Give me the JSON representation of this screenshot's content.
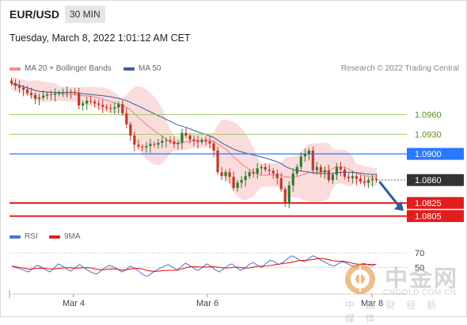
{
  "header": {
    "symbol": "EUR/USD",
    "timeframe": "30 MIN"
  },
  "datetime": "Tuesday, March 8, 2022 1:01:12 AM CET",
  "legend": {
    "ma20": "MA 20 + Bollinger Bands",
    "ma50": "MA 50",
    "rsi": "RSI",
    "ma9": "9MA"
  },
  "credit": "Research © 2022 Trading Central",
  "colors": {
    "ma20": "#ee9090",
    "ma50": "#3a5f9e",
    "band": "#f9d6d6",
    "up": "#2f7a2f",
    "down": "#c0392b",
    "resistance": "#9ccc65",
    "pivot": "#2979ff",
    "support": "#e11d1d",
    "last": "#333333",
    "arrow": "#2f5b9c"
  },
  "chart_data": [
    {
      "type": "candlestick",
      "title": "EUR/USD 30 MIN",
      "x_tick_labels": [
        "Mar 4",
        "Mar 6",
        "Mar 8"
      ],
      "ylim": [
        1.079,
        1.102
      ],
      "levels": [
        {
          "label": "1.0960",
          "value": 1.096,
          "kind": "resistance"
        },
        {
          "label": "1.0930",
          "value": 1.093,
          "kind": "resistance"
        },
        {
          "label": "1.0900",
          "value": 1.09,
          "kind": "pivot"
        },
        {
          "label": "1.0860",
          "value": 1.086,
          "kind": "last"
        },
        {
          "label": "1.0825",
          "value": 1.0825,
          "kind": "support"
        },
        {
          "label": "1.0805",
          "value": 1.0805,
          "kind": "support"
        }
      ],
      "close": [
        1.1008,
        1.1004,
        1.1001,
        1.0998,
        1.0993,
        1.099,
        1.0984,
        1.0986,
        1.0989,
        1.0991,
        1.099,
        1.0992,
        1.0993,
        1.0994,
        1.0995,
        1.0994,
        1.0993,
        1.0974,
        1.0977,
        1.0981,
        1.098,
        1.0977,
        1.0975,
        1.0972,
        1.097,
        1.0969,
        1.0971,
        1.0976,
        1.0962,
        1.0945,
        1.0928,
        1.0914,
        1.0911,
        1.091,
        1.0912,
        1.0915,
        1.0914,
        1.0917,
        1.092,
        1.0921,
        1.0919,
        1.0915,
        1.0917,
        1.0932,
        1.0928,
        1.0922,
        1.092,
        1.0918,
        1.0921,
        1.0919,
        1.0916,
        1.0905,
        1.0872,
        1.0866,
        1.0872,
        1.0865,
        1.0848,
        1.0856,
        1.086,
        1.0866,
        1.0872,
        1.087,
        1.0878,
        1.088,
        1.0876,
        1.0874,
        1.087,
        1.0863,
        1.0846,
        1.0825,
        1.0852,
        1.087,
        1.088,
        1.0896,
        1.09,
        1.0905,
        1.0875,
        1.088,
        1.0872,
        1.0875,
        1.086,
        1.0868,
        1.088,
        1.0876,
        1.0865,
        1.0863,
        1.0866,
        1.0862,
        1.0858,
        1.0856,
        1.086,
        1.0862,
        1.086
      ],
      "rsi": {
        "reference_levels": [
          70,
          50
        ],
        "values": [
          52,
          50,
          48,
          46,
          44,
          49,
          53,
          51,
          47,
          44,
          49,
          55,
          52,
          48,
          45,
          50,
          54,
          50,
          46,
          43,
          41,
          45,
          50,
          53,
          51,
          48,
          44,
          47,
          52,
          49,
          45,
          40,
          38,
          42,
          46,
          49,
          52,
          54,
          50,
          47,
          51,
          56,
          53,
          49,
          46,
          50,
          55,
          52,
          47,
          44,
          48,
          53,
          55,
          50,
          46,
          49,
          54,
          57,
          53,
          50,
          56,
          60,
          58,
          54,
          57,
          62,
          66,
          64,
          60,
          58,
          62,
          66,
          64,
          60,
          57,
          54,
          52,
          55,
          58,
          56,
          53,
          51,
          54,
          56,
          54,
          52,
          55
        ]
      }
    }
  ],
  "watermark": {
    "cn": "中金网",
    "en": "CNGOLD.COM.CN",
    "sub": "中 国 财 经 新 媒 体"
  }
}
